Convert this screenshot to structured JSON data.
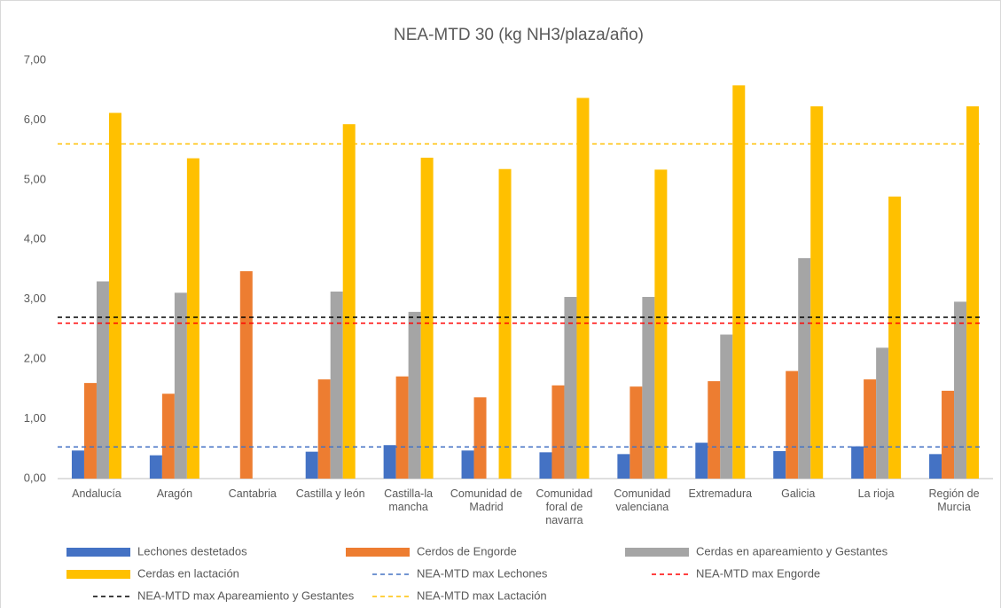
{
  "chart_data": {
    "type": "bar",
    "title": "NEA-MTD 30 (kg NH3/plaza/año)",
    "categories": [
      "Andalucía",
      "Aragón",
      "Cantabria",
      "Castilla y león",
      "Castilla-la mancha",
      "Comunidad de Madrid",
      "Comunidad foral de navarra",
      "Comunidad valenciana",
      "Extremadura",
      "Galicia",
      "La rioja",
      "Región de Murcia"
    ],
    "series": [
      {
        "name": "Lechones destetados",
        "color": "#4472c4",
        "values": [
          0.47,
          0.39,
          null,
          0.45,
          0.56,
          0.47,
          0.44,
          0.41,
          0.6,
          0.46,
          0.54,
          0.41
        ]
      },
      {
        "name": "Cerdos de Engorde",
        "color": "#ed7d31",
        "values": [
          1.6,
          1.42,
          3.47,
          1.66,
          1.71,
          1.36,
          1.56,
          1.54,
          1.63,
          1.8,
          1.66,
          1.47
        ]
      },
      {
        "name": "Cerdas en apareamiento y  Gestantes",
        "color": "#a5a5a5",
        "values": [
          3.3,
          3.11,
          null,
          3.13,
          2.79,
          null,
          3.04,
          3.04,
          2.41,
          3.69,
          2.19,
          2.96
        ]
      },
      {
        "name": "Cerdas en lactación",
        "color": "#ffc000",
        "values": [
          6.12,
          5.36,
          null,
          5.93,
          5.37,
          5.18,
          6.37,
          5.17,
          6.58,
          6.23,
          4.72,
          6.23
        ]
      }
    ],
    "reference_lines": [
      {
        "name": "NEA-MTD max  Lechones",
        "color": "#4472c4",
        "value": 0.53
      },
      {
        "name": "NEA-MTD max  Engorde",
        "color": "#ff0000",
        "value": 2.6
      },
      {
        "name": "NEA-MTD max Apareamiento y Gestantes",
        "color": "#000000",
        "value": 2.7
      },
      {
        "name": "NEA-MTD max Lactación",
        "color": "#ffc000",
        "value": 5.6
      }
    ],
    "ylim": [
      0,
      7
    ],
    "yticks": [
      {
        "value": 0,
        "label": "0,00"
      },
      {
        "value": 1,
        "label": "1,00"
      },
      {
        "value": 2,
        "label": "2,00"
      },
      {
        "value": 3,
        "label": "3,00"
      },
      {
        "value": 4,
        "label": "4,00"
      },
      {
        "value": 5,
        "label": "5,00"
      },
      {
        "value": 6,
        "label": "6,00"
      },
      {
        "value": 7,
        "label": "7,00"
      }
    ],
    "grid": false
  }
}
